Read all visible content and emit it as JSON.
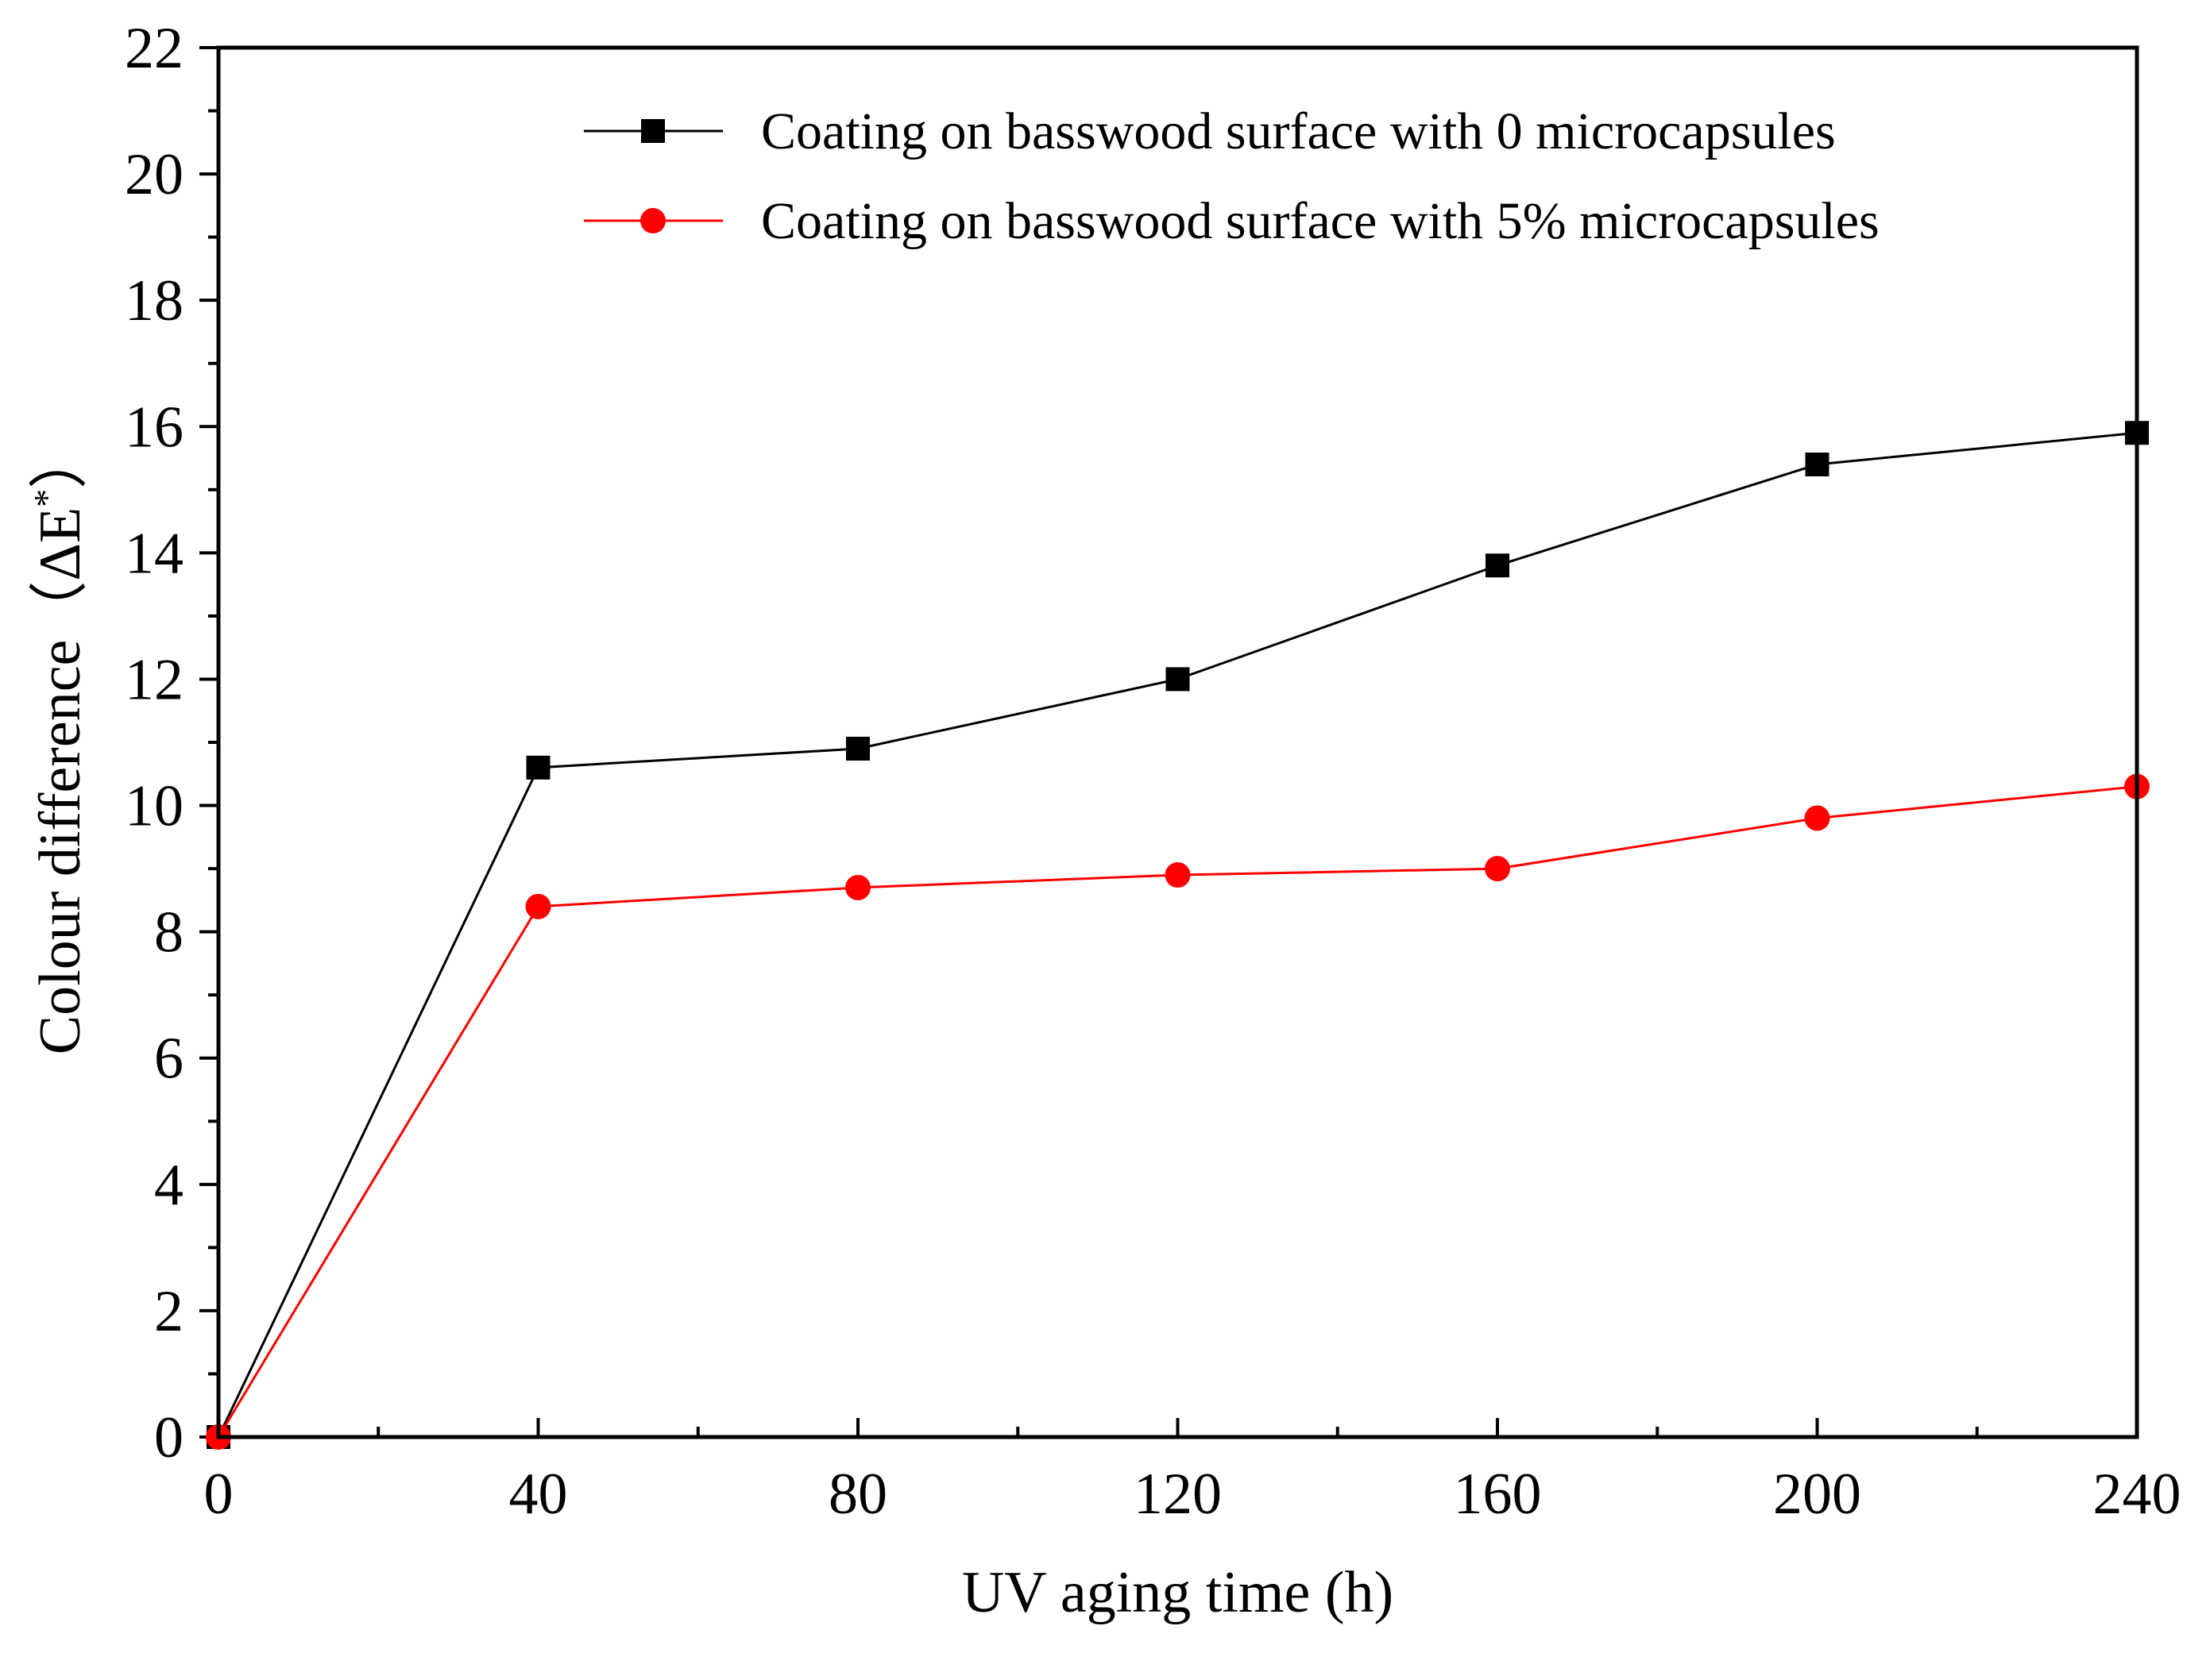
{
  "chart_data": {
    "type": "line",
    "title": "",
    "xlabel": "UV aging time (h)",
    "ylabel": "Colour difference（ΔE",
    "ylabel_sup": "*",
    "ylabel_close": "）",
    "x": [
      0,
      40,
      80,
      120,
      160,
      200,
      240
    ],
    "xlim": [
      0,
      240
    ],
    "ylim": [
      0,
      22
    ],
    "x_ticks": [
      0,
      40,
      80,
      120,
      160,
      200,
      240
    ],
    "x_tick_labels": [
      "0",
      "40",
      "80",
      "120",
      "160",
      "200",
      "240"
    ],
    "y_ticks": [
      0,
      2,
      4,
      6,
      8,
      10,
      12,
      14,
      16,
      18,
      20,
      22
    ],
    "y_tick_labels": [
      "0",
      "2",
      "4",
      "6",
      "8",
      "10",
      "12",
      "14",
      "16",
      "18",
      "20",
      "22"
    ],
    "grid": false,
    "legend_position": "top-right",
    "series": [
      {
        "name": "Coating on basswood surface with 0 microcapsules",
        "color": "#000000",
        "marker": "square",
        "values": [
          0,
          10.6,
          10.9,
          12.0,
          13.8,
          15.4,
          15.9
        ]
      },
      {
        "name": "Coating on basswood surface with 5% microcapsules",
        "color": "#ff0000",
        "marker": "circle",
        "values": [
          0,
          8.4,
          8.7,
          8.9,
          9.0,
          9.8,
          10.3
        ]
      }
    ]
  }
}
